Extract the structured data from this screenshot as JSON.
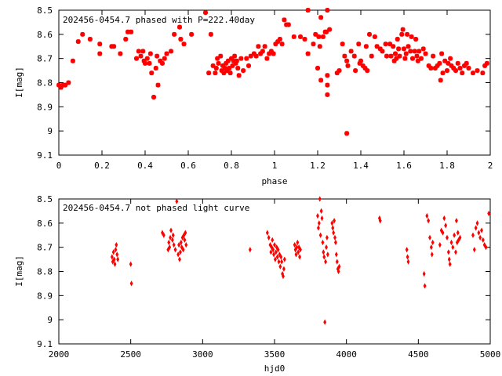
{
  "colors": {
    "series": "#ff0000",
    "axis": "#000000",
    "background": "#ffffff"
  },
  "chart_data": [
    {
      "type": "scatter",
      "title": "202456-0454.7 phased with P=222.40day",
      "xlabel": "phase",
      "ylabel": "I[mag]",
      "xlim": [
        0,
        2
      ],
      "ylim": [
        8.5,
        9.1
      ],
      "y_inverted": true,
      "grid": false,
      "marker": "star",
      "x_ticks": [
        "0",
        "0.2",
        "0.4",
        "0.6",
        "0.8",
        "1",
        "1.2",
        "1.4",
        "1.6",
        "1.8",
        "2"
      ],
      "y_ticks": [
        "8.5",
        "8.6",
        "8.7",
        "8.8",
        "8.9",
        "9",
        "9.1"
      ],
      "points": [
        [
          0.0,
          8.81
        ],
        [
          0.01,
          8.82
        ],
        [
          0.02,
          8.81
        ],
        [
          0.03,
          8.81
        ],
        [
          0.045,
          8.8
        ],
        [
          0.065,
          8.71
        ],
        [
          0.09,
          8.63
        ],
        [
          0.11,
          8.6
        ],
        [
          0.145,
          8.62
        ],
        [
          0.19,
          8.64
        ],
        [
          0.19,
          8.68
        ],
        [
          0.245,
          8.65
        ],
        [
          0.255,
          8.65
        ],
        [
          0.285,
          8.68
        ],
        [
          0.31,
          8.62
        ],
        [
          0.32,
          8.59
        ],
        [
          0.335,
          8.59
        ],
        [
          0.36,
          8.7
        ],
        [
          0.37,
          8.67
        ],
        [
          0.38,
          8.69
        ],
        [
          0.39,
          8.67
        ],
        [
          0.395,
          8.71
        ],
        [
          0.4,
          8.72
        ],
        [
          0.41,
          8.7
        ],
        [
          0.42,
          8.72
        ],
        [
          0.425,
          8.68
        ],
        [
          0.43,
          8.76
        ],
        [
          0.44,
          8.86
        ],
        [
          0.45,
          8.74
        ],
        [
          0.455,
          8.69
        ],
        [
          0.46,
          8.81
        ],
        [
          0.47,
          8.71
        ],
        [
          0.48,
          8.72
        ],
        [
          0.49,
          8.7
        ],
        [
          0.5,
          8.68
        ],
        [
          0.52,
          8.67
        ],
        [
          0.535,
          8.6
        ],
        [
          0.56,
          8.57
        ],
        [
          0.565,
          8.62
        ],
        [
          0.58,
          8.64
        ],
        [
          0.615,
          8.6
        ],
        [
          0.68,
          8.51
        ],
        [
          0.695,
          8.76
        ],
        [
          0.705,
          8.6
        ],
        [
          0.715,
          8.73
        ],
        [
          0.725,
          8.76
        ],
        [
          0.73,
          8.74
        ],
        [
          0.735,
          8.7
        ],
        [
          0.74,
          8.72
        ],
        [
          0.75,
          8.69
        ],
        [
          0.755,
          8.75
        ],
        [
          0.76,
          8.73
        ],
        [
          0.765,
          8.76
        ],
        [
          0.77,
          8.74
        ],
        [
          0.775,
          8.72
        ],
        [
          0.78,
          8.75
        ],
        [
          0.785,
          8.71
        ],
        [
          0.79,
          8.74
        ],
        [
          0.795,
          8.76
        ],
        [
          0.8,
          8.7
        ],
        [
          0.805,
          8.73
        ],
        [
          0.81,
          8.71
        ],
        [
          0.815,
          8.69
        ],
        [
          0.82,
          8.72
        ],
        [
          0.825,
          8.71
        ],
        [
          0.83,
          8.74
        ],
        [
          0.835,
          8.77
        ],
        [
          0.845,
          8.7
        ],
        [
          0.855,
          8.75
        ],
        [
          0.87,
          8.7
        ],
        [
          0.88,
          8.73
        ],
        [
          0.89,
          8.69
        ],
        [
          0.905,
          8.68
        ],
        [
          0.915,
          8.69
        ],
        [
          0.925,
          8.65
        ],
        [
          0.935,
          8.68
        ],
        [
          0.945,
          8.67
        ],
        [
          0.955,
          8.65
        ],
        [
          0.965,
          8.7
        ],
        [
          0.975,
          8.68
        ],
        [
          0.985,
          8.67
        ],
        [
          0.995,
          8.68
        ],
        [
          1.005,
          8.64
        ],
        [
          1.015,
          8.63
        ],
        [
          1.025,
          8.62
        ],
        [
          1.035,
          8.64
        ],
        [
          1.045,
          8.54
        ],
        [
          1.055,
          8.56
        ],
        [
          1.065,
          8.56
        ],
        [
          1.09,
          8.61
        ],
        [
          1.12,
          8.61
        ],
        [
          1.14,
          8.62
        ],
        [
          1.155,
          8.5
        ],
        [
          1.155,
          8.68
        ],
        [
          1.18,
          8.64
        ],
        [
          1.19,
          8.6
        ],
        [
          1.2,
          8.74
        ],
        [
          1.205,
          8.61
        ],
        [
          1.21,
          8.65
        ],
        [
          1.215,
          8.53
        ],
        [
          1.215,
          8.79
        ],
        [
          1.225,
          8.61
        ],
        [
          1.235,
          8.59
        ],
        [
          1.24,
          8.59
        ],
        [
          1.245,
          8.5
        ],
        [
          1.245,
          8.77
        ],
        [
          1.245,
          8.81
        ],
        [
          1.245,
          8.85
        ],
        [
          1.255,
          8.58
        ],
        [
          1.29,
          8.76
        ],
        [
          1.3,
          8.75
        ],
        [
          1.315,
          8.64
        ],
        [
          1.325,
          8.69
        ],
        [
          1.335,
          8.71
        ],
        [
          1.335,
          9.01
        ],
        [
          1.34,
          8.73
        ],
        [
          1.355,
          8.67
        ],
        [
          1.37,
          8.69
        ],
        [
          1.375,
          8.75
        ],
        [
          1.39,
          8.64
        ],
        [
          1.395,
          8.72
        ],
        [
          1.4,
          8.71
        ],
        [
          1.41,
          8.73
        ],
        [
          1.42,
          8.74
        ],
        [
          1.425,
          8.65
        ],
        [
          1.43,
          8.75
        ],
        [
          1.44,
          8.6
        ],
        [
          1.45,
          8.69
        ],
        [
          1.465,
          8.61
        ],
        [
          1.475,
          8.65
        ],
        [
          1.49,
          8.66
        ],
        [
          1.5,
          8.67
        ],
        [
          1.515,
          8.64
        ],
        [
          1.52,
          8.69
        ],
        [
          1.535,
          8.64
        ],
        [
          1.54,
          8.69
        ],
        [
          1.55,
          8.65
        ],
        [
          1.555,
          8.71
        ],
        [
          1.56,
          8.68
        ],
        [
          1.565,
          8.7
        ],
        [
          1.57,
          8.62
        ],
        [
          1.575,
          8.66
        ],
        [
          1.58,
          8.69
        ],
        [
          1.59,
          8.6
        ],
        [
          1.595,
          8.58
        ],
        [
          1.6,
          8.66
        ],
        [
          1.605,
          8.7
        ],
        [
          1.61,
          8.68
        ],
        [
          1.615,
          8.6
        ],
        [
          1.62,
          8.65
        ],
        [
          1.63,
          8.67
        ],
        [
          1.635,
          8.61
        ],
        [
          1.64,
          8.7
        ],
        [
          1.65,
          8.67
        ],
        [
          1.655,
          8.62
        ],
        [
          1.66,
          8.69
        ],
        [
          1.665,
          8.71
        ],
        [
          1.67,
          8.67
        ],
        [
          1.68,
          8.7
        ],
        [
          1.69,
          8.66
        ],
        [
          1.7,
          8.68
        ],
        [
          1.715,
          8.73
        ],
        [
          1.725,
          8.74
        ],
        [
          1.735,
          8.69
        ],
        [
          1.745,
          8.74
        ],
        [
          1.755,
          8.73
        ],
        [
          1.765,
          8.72
        ],
        [
          1.77,
          8.79
        ],
        [
          1.775,
          8.68
        ],
        [
          1.78,
          8.76
        ],
        [
          1.79,
          8.71
        ],
        [
          1.8,
          8.75
        ],
        [
          1.805,
          8.72
        ],
        [
          1.815,
          8.7
        ],
        [
          1.82,
          8.73
        ],
        [
          1.83,
          8.74
        ],
        [
          1.84,
          8.75
        ],
        [
          1.85,
          8.72
        ],
        [
          1.86,
          8.74
        ],
        [
          1.87,
          8.76
        ],
        [
          1.88,
          8.73
        ],
        [
          1.89,
          8.72
        ],
        [
          1.9,
          8.74
        ],
        [
          1.92,
          8.76
        ],
        [
          1.94,
          8.75
        ],
        [
          1.965,
          8.76
        ],
        [
          1.975,
          8.73
        ],
        [
          1.985,
          8.72
        ]
      ]
    },
    {
      "type": "scatter",
      "title": "202456-0454.7 not phased light curve",
      "xlabel": "hjd0",
      "ylabel": "I[mag]",
      "xlim": [
        2000,
        5000
      ],
      "ylim": [
        8.5,
        9.1
      ],
      "y_inverted": true,
      "grid": false,
      "marker": "diamond",
      "x_ticks": [
        "2000",
        "2500",
        "3000",
        "3500",
        "4000",
        "4500",
        "5000"
      ],
      "y_ticks": [
        "8.5",
        "8.6",
        "8.7",
        "8.8",
        "8.9",
        "9",
        "9.1"
      ],
      "points": [
        [
          2370,
          8.74
        ],
        [
          2375,
          8.76
        ],
        [
          2380,
          8.72
        ],
        [
          2385,
          8.75
        ],
        [
          2390,
          8.77
        ],
        [
          2395,
          8.71
        ],
        [
          2400,
          8.69
        ],
        [
          2405,
          8.73
        ],
        [
          2410,
          8.75
        ],
        [
          2500,
          8.77
        ],
        [
          2505,
          8.85
        ],
        [
          2720,
          8.64
        ],
        [
          2730,
          8.65
        ],
        [
          2760,
          8.71
        ],
        [
          2765,
          8.68
        ],
        [
          2770,
          8.7
        ],
        [
          2775,
          8.66
        ],
        [
          2780,
          8.63
        ],
        [
          2790,
          8.67
        ],
        [
          2795,
          8.65
        ],
        [
          2800,
          8.69
        ],
        [
          2810,
          8.71
        ],
        [
          2820,
          8.51
        ],
        [
          2830,
          8.73
        ],
        [
          2835,
          8.69
        ],
        [
          2840,
          8.75
        ],
        [
          2845,
          8.72
        ],
        [
          2850,
          8.68
        ],
        [
          2855,
          8.7
        ],
        [
          2860,
          8.66
        ],
        [
          2865,
          8.71
        ],
        [
          2870,
          8.65
        ],
        [
          2875,
          8.67
        ],
        [
          2880,
          8.64
        ],
        [
          2885,
          8.69
        ],
        [
          3330,
          8.71
        ],
        [
          3450,
          8.64
        ],
        [
          3460,
          8.66
        ],
        [
          3470,
          8.69
        ],
        [
          3475,
          8.72
        ],
        [
          3480,
          8.7
        ],
        [
          3485,
          8.67
        ],
        [
          3490,
          8.71
        ],
        [
          3495,
          8.73
        ],
        [
          3500,
          8.69
        ],
        [
          3505,
          8.75
        ],
        [
          3510,
          8.72
        ],
        [
          3515,
          8.7
        ],
        [
          3520,
          8.74
        ],
        [
          3525,
          8.71
        ],
        [
          3530,
          8.76
        ],
        [
          3535,
          8.73
        ],
        [
          3540,
          8.78
        ],
        [
          3545,
          8.74
        ],
        [
          3550,
          8.76
        ],
        [
          3555,
          8.81
        ],
        [
          3560,
          8.82
        ],
        [
          3565,
          8.79
        ],
        [
          3570,
          8.75
        ],
        [
          3640,
          8.69
        ],
        [
          3645,
          8.71
        ],
        [
          3650,
          8.73
        ],
        [
          3655,
          8.7
        ],
        [
          3660,
          8.68
        ],
        [
          3665,
          8.72
        ],
        [
          3670,
          8.7
        ],
        [
          3675,
          8.74
        ],
        [
          3680,
          8.71
        ],
        [
          3800,
          8.57
        ],
        [
          3805,
          8.62
        ],
        [
          3810,
          8.6
        ],
        [
          3815,
          8.5
        ],
        [
          3820,
          8.65
        ],
        [
          3825,
          8.55
        ],
        [
          3830,
          8.58
        ],
        [
          3835,
          8.68
        ],
        [
          3840,
          8.72
        ],
        [
          3845,
          8.74
        ],
        [
          3850,
          9.01
        ],
        [
          3855,
          8.76
        ],
        [
          3860,
          8.7
        ],
        [
          3865,
          8.66
        ],
        [
          3870,
          8.73
        ],
        [
          3900,
          8.6
        ],
        [
          3905,
          8.62
        ],
        [
          3910,
          8.64
        ],
        [
          3915,
          8.59
        ],
        [
          3920,
          8.66
        ],
        [
          3925,
          8.68
        ],
        [
          3930,
          8.73
        ],
        [
          3935,
          8.76
        ],
        [
          3940,
          8.79
        ],
        [
          3945,
          8.8
        ],
        [
          3950,
          8.78
        ],
        [
          4230,
          8.58
        ],
        [
          4235,
          8.59
        ],
        [
          4420,
          8.71
        ],
        [
          4425,
          8.74
        ],
        [
          4430,
          8.76
        ],
        [
          4540,
          8.81
        ],
        [
          4545,
          8.86
        ],
        [
          4560,
          8.57
        ],
        [
          4570,
          8.59
        ],
        [
          4580,
          8.66
        ],
        [
          4590,
          8.7
        ],
        [
          4595,
          8.73
        ],
        [
          4600,
          8.68
        ],
        [
          4650,
          8.69
        ],
        [
          4660,
          8.63
        ],
        [
          4670,
          8.64
        ],
        [
          4680,
          8.58
        ],
        [
          4690,
          8.61
        ],
        [
          4700,
          8.66
        ],
        [
          4710,
          8.72
        ],
        [
          4715,
          8.75
        ],
        [
          4720,
          8.77
        ],
        [
          4730,
          8.68
        ],
        [
          4740,
          8.7
        ],
        [
          4750,
          8.65
        ],
        [
          4760,
          8.72
        ],
        [
          4765,
          8.59
        ],
        [
          4770,
          8.68
        ],
        [
          4775,
          8.64
        ],
        [
          4780,
          8.67
        ],
        [
          4790,
          8.66
        ],
        [
          4880,
          8.65
        ],
        [
          4890,
          8.71
        ],
        [
          4900,
          8.62
        ],
        [
          4910,
          8.6
        ],
        [
          4920,
          8.64
        ],
        [
          4930,
          8.66
        ],
        [
          4940,
          8.63
        ],
        [
          4950,
          8.67
        ],
        [
          4960,
          8.69
        ],
        [
          4970,
          8.7
        ],
        [
          4990,
          8.56
        ]
      ]
    }
  ]
}
